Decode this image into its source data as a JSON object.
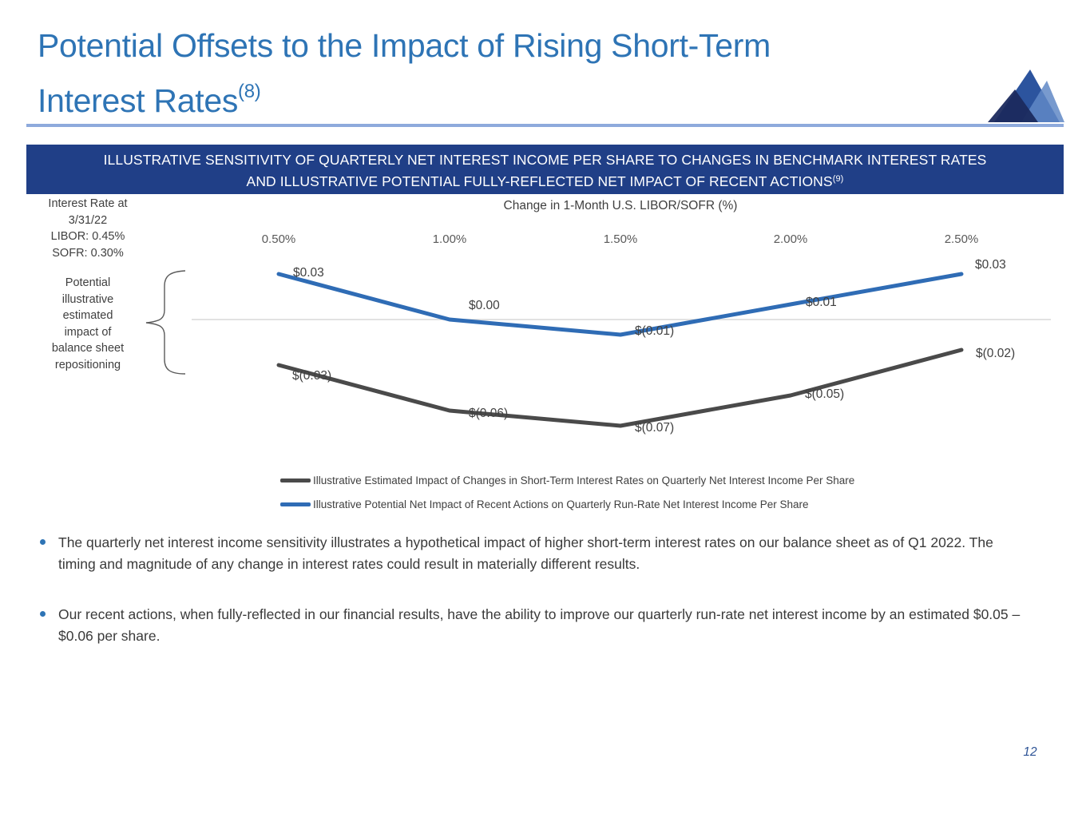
{
  "slide": {
    "title_line1": "Potential Offsets to the Impact of Rising Short-Term",
    "title_line2": "Interest Rates",
    "title_sup": "(8)",
    "page_number": "12"
  },
  "banner": {
    "line1": "ILLUSTRATIVE SENSITIVITY OF QUARTERLY NET INTEREST INCOME PER SHARE TO CHANGES IN BENCHMARK INTEREST RATES",
    "line2": "AND ILLUSTRATIVE POTENTIAL FULLY-REFLECTED NET IMPACT OF RECENT ACTIONS",
    "line2_sup": "(9)"
  },
  "annotations": {
    "rate_note_lines": [
      "Interest Rate at",
      "3/31/22",
      "LIBOR: 0.45%",
      "SOFR: 0.30%"
    ],
    "brace_note_lines": [
      "Potential",
      "illustrative",
      "estimated",
      "impact of",
      "balance sheet",
      "repositioning"
    ]
  },
  "chart_data": {
    "type": "line",
    "x_axis_title": "Change in 1-Month U.S. LIBOR/SOFR (%)",
    "categories": [
      "0.50%",
      "1.00%",
      "1.50%",
      "2.00%",
      "2.50%"
    ],
    "series": [
      {
        "name": "Illustrative Estimated Impact of Changes in Short-Term Interest Rates on Quarterly Net Interest Income Per Share",
        "color": "#4a4a4a",
        "values": [
          -0.03,
          -0.06,
          -0.07,
          -0.05,
          -0.02
        ],
        "labels": [
          "$(0.03)",
          "$(0.06)",
          "$(0.07)",
          "$(0.05)",
          "$(0.02)"
        ]
      },
      {
        "name": "Illustrative Potential Net Impact of Recent Actions on Quarterly Run-Rate Net Interest Income Per Share",
        "color": "#2f6cb5",
        "values": [
          0.03,
          0.0,
          -0.01,
          0.01,
          0.03
        ],
        "labels": [
          "$0.03",
          "$0.00",
          "$(0.01)",
          "$0.01",
          "$0.03"
        ]
      }
    ],
    "ylim": [
      -0.09,
      0.05
    ],
    "zero_line": true,
    "grid": false,
    "legend_position": "bottom-left"
  },
  "bullets": [
    "The quarterly net interest income sensitivity illustrates a hypothetical impact of higher short-term interest rates on our balance sheet as of Q1 2022. The timing and magnitude of any change in interest rates could result in materially different results.",
    "Our recent actions, when fully-reflected in our financial results, have the ability to improve our quarterly run-rate net interest income by an estimated $0.05 – $0.06 per share."
  ],
  "colors": {
    "title_blue": "#2e74b5",
    "banner_background": "#203f87",
    "banner_text": "#ffffff",
    "underline_blue": "#8eaadc",
    "zero_line": "#d9d9d9",
    "label_text": "#404040",
    "bullet_dot": "#2e74b5",
    "body_text": "#3a3a3a",
    "page_number_blue": "#2e5496",
    "logo_medium_blue": "#2c549e",
    "logo_light_blue": "#6088c6",
    "logo_dark_navy": "#1b2a5e"
  }
}
